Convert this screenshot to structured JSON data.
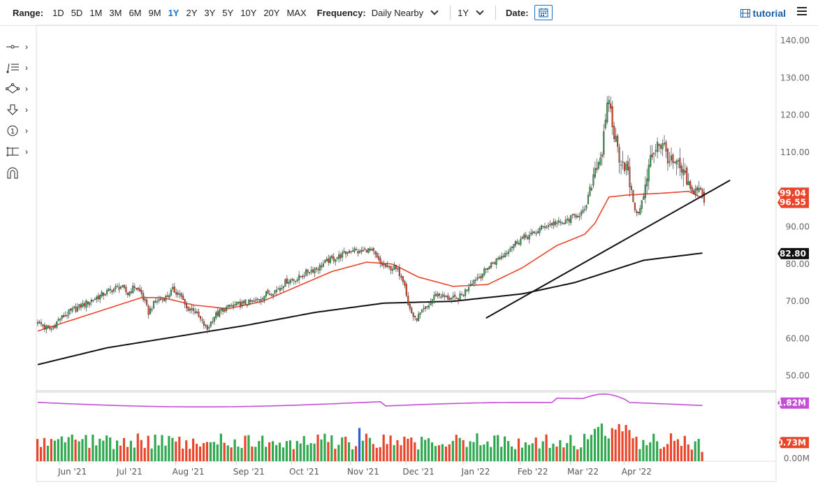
{
  "toolbar": {
    "range_label": "Range:",
    "ranges": [
      "1D",
      "5D",
      "1M",
      "3M",
      "6M",
      "9M",
      "1Y",
      "2Y",
      "3Y",
      "5Y",
      "10Y",
      "20Y",
      "MAX"
    ],
    "active_range": "1Y",
    "frequency_label": "Frequency:",
    "frequency_value": "Daily Nearby",
    "period_value": "1Y",
    "date_label": "Date:",
    "tutorial_label": "tutorial"
  },
  "tools": [
    "crosshair-icon",
    "fib-icon",
    "shapes-icon",
    "arrow-down-icon",
    "number-icon",
    "measure-icon",
    "magnet-icon"
  ],
  "colors": {
    "up": "#2fa84f",
    "down": "#e8452b",
    "ma50": "#e8452b",
    "ma200": "#111111",
    "volume_avg": "#c34fd4",
    "volume_avg_badge": "#c34fd4",
    "highlight_vol": "#2a5fd4"
  },
  "chart_data": {
    "type": "candlestick",
    "x_labels": [
      "Jun '21",
      "Jul '21",
      "Aug '21",
      "Sep '21",
      "Oct '21",
      "Nov '21",
      "Dec '21",
      "Jan '22",
      "Feb '22",
      "Mar '22",
      "Apr '22"
    ],
    "y_ticks": [
      "140.00",
      "130.00",
      "120.00",
      "110.00",
      "90.00",
      "80.00",
      "70.00",
      "60.00",
      "50.00"
    ],
    "ylim": [
      46,
      141
    ],
    "price_badges": {
      "last": "96.55",
      "prev": "99.04",
      "ma200": "82.80"
    },
    "close_anchors": [
      [
        0,
        64.5
      ],
      [
        4,
        63
      ],
      [
        8,
        62.5
      ],
      [
        12,
        65
      ],
      [
        18,
        67
      ],
      [
        24,
        68.5
      ],
      [
        30,
        70
      ],
      [
        36,
        71.5
      ],
      [
        42,
        73
      ],
      [
        48,
        74
      ],
      [
        52,
        72
      ],
      [
        56,
        74
      ],
      [
        60,
        72
      ],
      [
        64,
        67
      ],
      [
        68,
        70
      ],
      [
        74,
        71
      ],
      [
        78,
        73
      ],
      [
        82,
        72
      ],
      [
        86,
        68
      ],
      [
        90,
        68
      ],
      [
        94,
        65
      ],
      [
        98,
        62.5
      ],
      [
        102,
        66
      ],
      [
        108,
        68
      ],
      [
        114,
        69
      ],
      [
        120,
        69.5
      ],
      [
        126,
        70
      ],
      [
        132,
        72
      ],
      [
        138,
        73
      ],
      [
        144,
        75.5
      ],
      [
        150,
        76
      ],
      [
        156,
        78
      ],
      [
        162,
        79
      ],
      [
        168,
        81
      ],
      [
        174,
        82
      ],
      [
        178,
        83
      ],
      [
        182,
        84
      ],
      [
        186,
        83
      ],
      [
        190,
        84
      ],
      [
        194,
        83
      ],
      [
        198,
        80
      ],
      [
        202,
        79
      ],
      [
        206,
        79
      ],
      [
        210,
        77
      ],
      [
        212,
        75
      ],
      [
        214,
        69
      ],
      [
        218,
        65
      ],
      [
        222,
        67
      ],
      [
        226,
        69
      ],
      [
        230,
        72
      ],
      [
        236,
        71
      ],
      [
        242,
        70.5
      ],
      [
        246,
        72
      ],
      [
        250,
        75
      ],
      [
        256,
        77
      ],
      [
        262,
        80
      ],
      [
        268,
        82
      ],
      [
        274,
        85
      ],
      [
        280,
        87
      ],
      [
        286,
        88
      ],
      [
        292,
        90
      ],
      [
        298,
        91
      ],
      [
        304,
        91
      ],
      [
        310,
        93
      ],
      [
        316,
        94
      ],
      [
        318,
        98
      ],
      [
        322,
        106
      ],
      [
        326,
        110
      ],
      [
        330,
        125
      ],
      [
        332,
        117
      ],
      [
        336,
        109
      ],
      [
        340,
        106
      ],
      [
        344,
        97
      ],
      [
        346,
        93
      ],
      [
        350,
        98
      ],
      [
        354,
        108
      ],
      [
        358,
        113
      ],
      [
        362,
        111
      ],
      [
        366,
        107
      ],
      [
        370,
        106
      ],
      [
        374,
        103
      ],
      [
        378,
        99
      ],
      [
        382,
        101
      ],
      [
        384,
        98
      ],
      [
        385,
        96.55
      ]
    ],
    "ma50_anchors": [
      [
        0,
        62
      ],
      [
        20,
        65
      ],
      [
        40,
        68
      ],
      [
        60,
        71
      ],
      [
        72,
        71
      ],
      [
        90,
        69
      ],
      [
        110,
        68
      ],
      [
        130,
        70
      ],
      [
        150,
        74
      ],
      [
        170,
        78
      ],
      [
        190,
        80.5
      ],
      [
        205,
        80
      ],
      [
        220,
        76.5
      ],
      [
        240,
        74
      ],
      [
        260,
        74.5
      ],
      [
        280,
        79
      ],
      [
        300,
        85
      ],
      [
        316,
        88
      ],
      [
        322,
        91
      ],
      [
        330,
        98
      ],
      [
        340,
        98.5
      ],
      [
        360,
        99
      ],
      [
        376,
        99.5
      ],
      [
        385,
        97.5
      ]
    ],
    "ma200_anchors": [
      [
        0,
        53
      ],
      [
        40,
        57.5
      ],
      [
        80,
        60.5
      ],
      [
        120,
        63.5
      ],
      [
        160,
        67
      ],
      [
        200,
        69.5
      ],
      [
        240,
        70
      ],
      [
        280,
        72
      ],
      [
        310,
        75
      ],
      [
        330,
        78
      ],
      [
        350,
        81
      ],
      [
        385,
        83
      ]
    ],
    "trendline": {
      "from": [
        259,
        65.5
      ],
      "to": [
        400,
        102.5
      ]
    },
    "volume": {
      "labels": [
        "1.82M",
        "0.73M",
        "0.00M"
      ],
      "avg_value_m": 1.82,
      "last_value_m": 0.73
    }
  }
}
